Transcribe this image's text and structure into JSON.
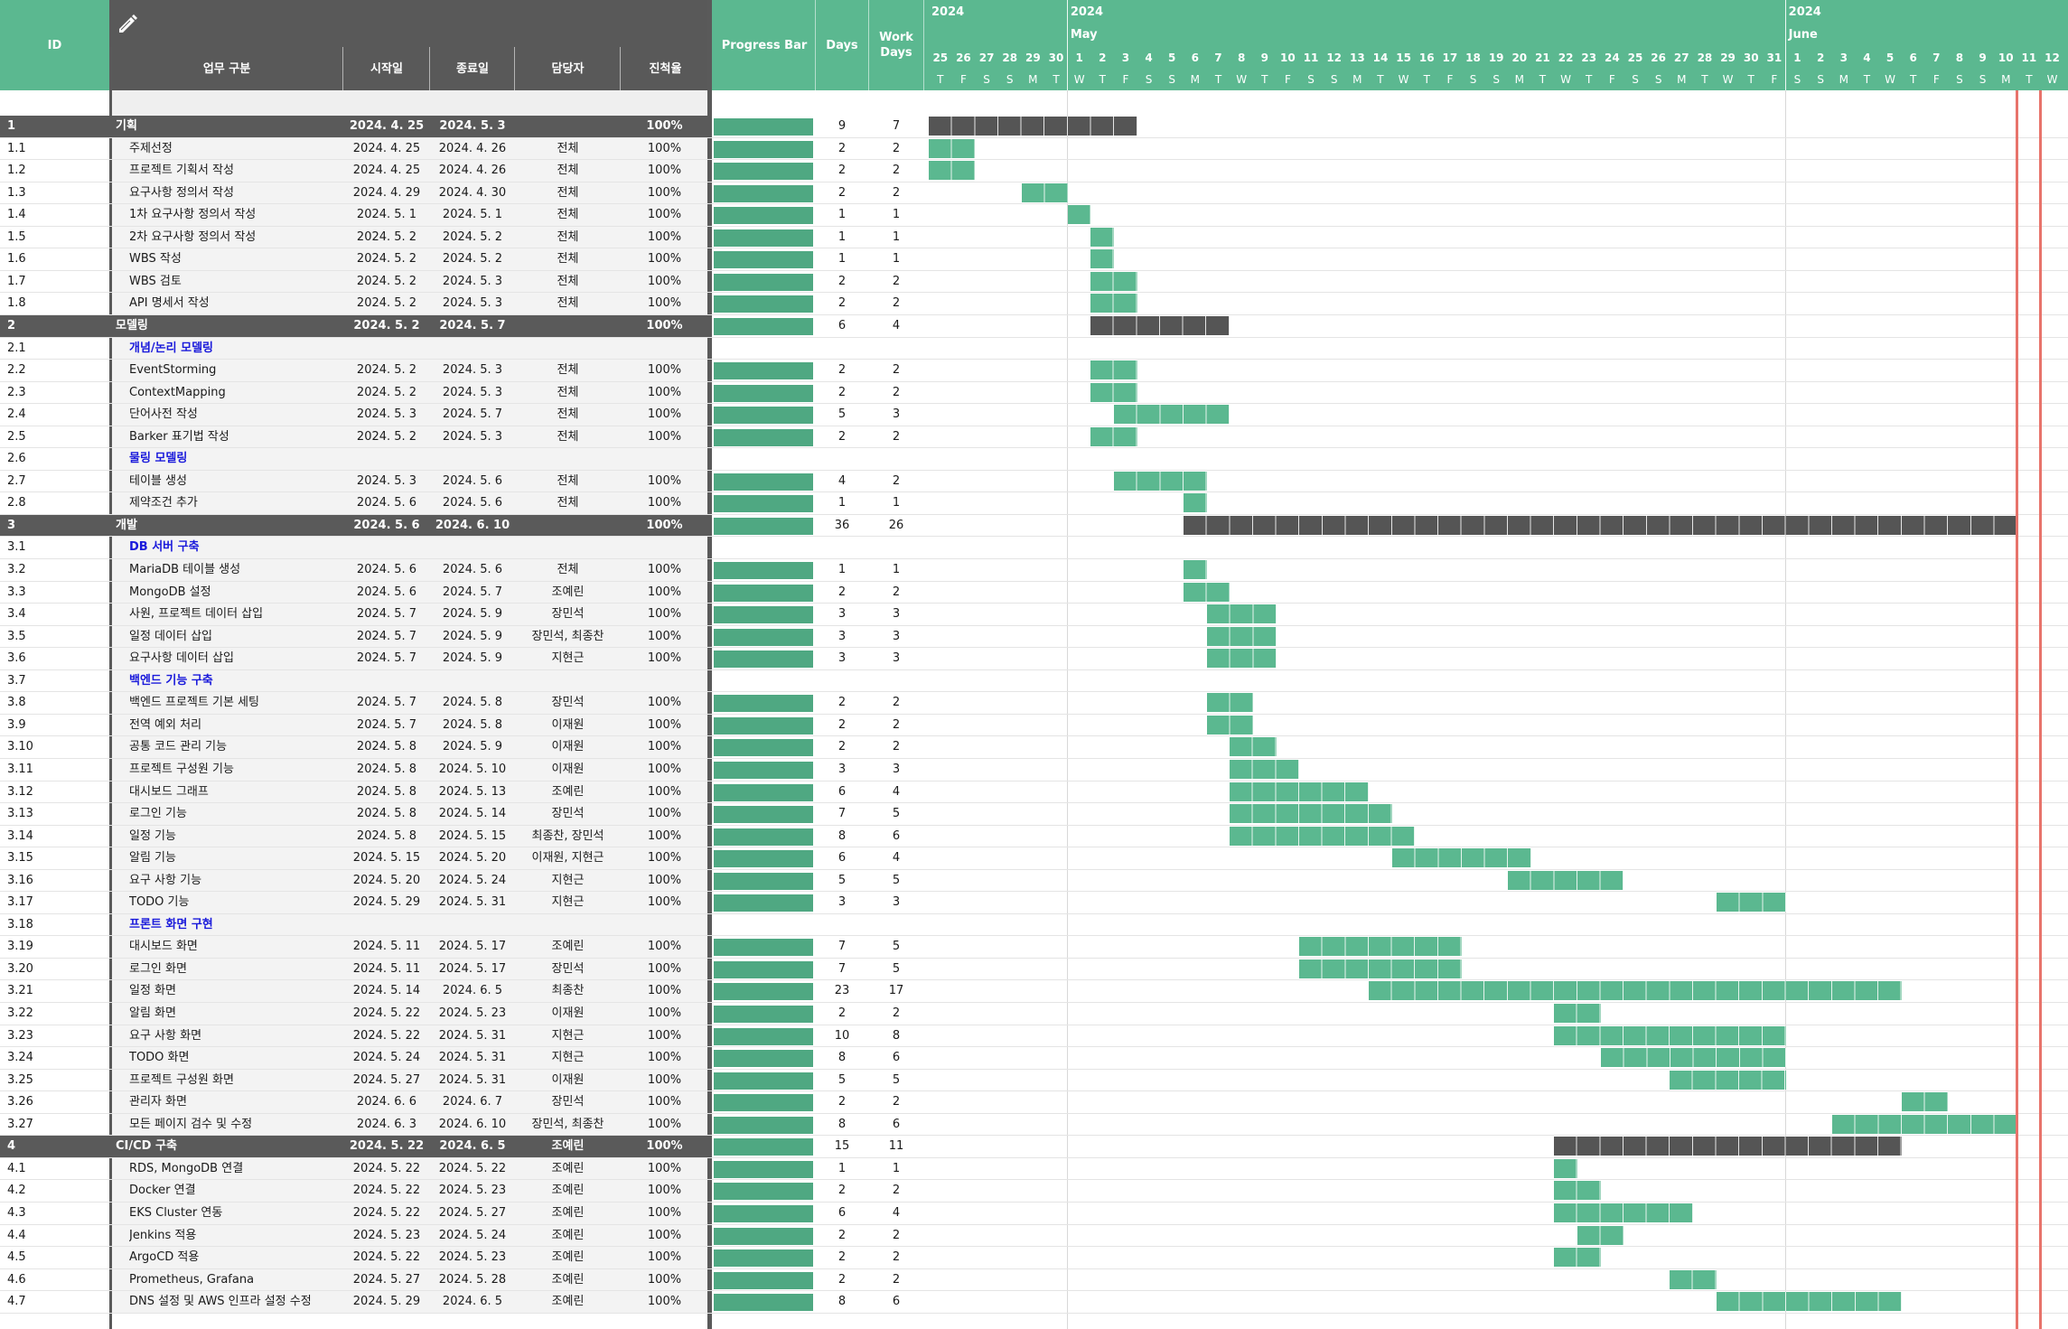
{
  "header": {
    "id_label": "ID",
    "task_label": "업무 구분",
    "start_label": "시작일",
    "end_label": "종료일",
    "owner_label": "담당자",
    "progress_label": "진척율",
    "progressbar_label": "Progress Bar",
    "days_label": "Days",
    "workdays_label": "Work Days",
    "edit_icon": "pencil-icon",
    "months": [
      {
        "year": "2024",
        "name": "",
        "start_index": 0
      },
      {
        "year": "2024",
        "name": "May",
        "start_index": 6
      },
      {
        "year": "2024",
        "name": "June",
        "start_index": 37
      }
    ],
    "dates": [
      {
        "d": "25",
        "w": "T"
      },
      {
        "d": "26",
        "w": "F"
      },
      {
        "d": "27",
        "w": "S"
      },
      {
        "d": "28",
        "w": "S"
      },
      {
        "d": "29",
        "w": "M"
      },
      {
        "d": "30",
        "w": "T"
      },
      {
        "d": "1",
        "w": "W"
      },
      {
        "d": "2",
        "w": "T"
      },
      {
        "d": "3",
        "w": "F"
      },
      {
        "d": "4",
        "w": "S"
      },
      {
        "d": "5",
        "w": "S"
      },
      {
        "d": "6",
        "w": "M"
      },
      {
        "d": "7",
        "w": "T"
      },
      {
        "d": "8",
        "w": "W"
      },
      {
        "d": "9",
        "w": "T"
      },
      {
        "d": "10",
        "w": "F"
      },
      {
        "d": "11",
        "w": "S"
      },
      {
        "d": "12",
        "w": "S"
      },
      {
        "d": "13",
        "w": "M"
      },
      {
        "d": "14",
        "w": "T"
      },
      {
        "d": "15",
        "w": "W"
      },
      {
        "d": "16",
        "w": "T"
      },
      {
        "d": "17",
        "w": "F"
      },
      {
        "d": "18",
        "w": "S"
      },
      {
        "d": "19",
        "w": "S"
      },
      {
        "d": "20",
        "w": "M"
      },
      {
        "d": "21",
        "w": "T"
      },
      {
        "d": "22",
        "w": "W"
      },
      {
        "d": "23",
        "w": "T"
      },
      {
        "d": "24",
        "w": "F"
      },
      {
        "d": "25",
        "w": "S"
      },
      {
        "d": "26",
        "w": "S"
      },
      {
        "d": "27",
        "w": "M"
      },
      {
        "d": "28",
        "w": "T"
      },
      {
        "d": "29",
        "w": "W"
      },
      {
        "d": "30",
        "w": "T"
      },
      {
        "d": "31",
        "w": "F"
      },
      {
        "d": "1",
        "w": "S"
      },
      {
        "d": "2",
        "w": "S"
      },
      {
        "d": "3",
        "w": "M"
      },
      {
        "d": "4",
        "w": "T"
      },
      {
        "d": "5",
        "w": "W"
      },
      {
        "d": "6",
        "w": "T"
      },
      {
        "d": "7",
        "w": "F"
      },
      {
        "d": "8",
        "w": "S"
      },
      {
        "d": "9",
        "w": "S"
      },
      {
        "d": "10",
        "w": "M"
      },
      {
        "d": "11",
        "w": "T"
      },
      {
        "d": "12",
        "w": "W"
      }
    ],
    "today_markers": [
      47,
      48
    ]
  },
  "colors": {
    "header_green": "#5bb890",
    "header_dark": "#595959",
    "bar_green": "#4fa882",
    "gantt_task": "#5bb890",
    "gantt_phase": "#555555",
    "subheading_blue": "#1a1adb",
    "today_red": "#e8736b"
  },
  "rows": [
    {
      "id": "1",
      "task": "기획",
      "start": "2024. 4. 25",
      "end": "2024. 5. 3",
      "owner": "",
      "pct": "100%",
      "days": "9",
      "work": "7",
      "type": "phase",
      "s": 0,
      "l": 9
    },
    {
      "id": "1.1",
      "task": "주제선정",
      "start": "2024. 4. 25",
      "end": "2024. 4. 26",
      "owner": "전체",
      "pct": "100%",
      "days": "2",
      "work": "2",
      "type": "task",
      "s": 0,
      "l": 2
    },
    {
      "id": "1.2",
      "task": "프로젝트 기획서 작성",
      "start": "2024. 4. 25",
      "end": "2024. 4. 26",
      "owner": "전체",
      "pct": "100%",
      "days": "2",
      "work": "2",
      "type": "task",
      "s": 0,
      "l": 2
    },
    {
      "id": "1.3",
      "task": "요구사항 정의서 작성",
      "start": "2024. 4. 29",
      "end": "2024. 4. 30",
      "owner": "전체",
      "pct": "100%",
      "days": "2",
      "work": "2",
      "type": "task",
      "s": 4,
      "l": 2
    },
    {
      "id": "1.4",
      "task": "1차 요구사항 정의서 작성",
      "start": "2024. 5. 1",
      "end": "2024. 5. 1",
      "owner": "전체",
      "pct": "100%",
      "days": "1",
      "work": "1",
      "type": "task",
      "s": 6,
      "l": 1
    },
    {
      "id": "1.5",
      "task": "2차 요구사항 정의서 작성",
      "start": "2024. 5. 2",
      "end": "2024. 5. 2",
      "owner": "전체",
      "pct": "100%",
      "days": "1",
      "work": "1",
      "type": "task",
      "s": 7,
      "l": 1
    },
    {
      "id": "1.6",
      "task": "WBS 작성",
      "start": "2024. 5. 2",
      "end": "2024. 5. 2",
      "owner": "전체",
      "pct": "100%",
      "days": "1",
      "work": "1",
      "type": "task",
      "s": 7,
      "l": 1
    },
    {
      "id": "1.7",
      "task": "WBS 검토",
      "start": "2024. 5. 2",
      "end": "2024. 5. 3",
      "owner": "전체",
      "pct": "100%",
      "days": "2",
      "work": "2",
      "type": "task",
      "s": 7,
      "l": 2
    },
    {
      "id": "1.8",
      "task": "API 명세서 작성",
      "start": "2024. 5. 2",
      "end": "2024. 5. 3",
      "owner": "전체",
      "pct": "100%",
      "days": "2",
      "work": "2",
      "type": "task",
      "s": 7,
      "l": 2
    },
    {
      "id": "2",
      "task": "모델링",
      "start": "2024. 5. 2",
      "end": "2024. 5. 7",
      "owner": "",
      "pct": "100%",
      "days": "6",
      "work": "4",
      "type": "phase",
      "s": 7,
      "l": 6
    },
    {
      "id": "2.1",
      "task": "개념/논리 모델링",
      "start": "",
      "end": "",
      "owner": "",
      "pct": "",
      "days": "",
      "work": "",
      "type": "sub",
      "s": 0,
      "l": 0
    },
    {
      "id": "2.2",
      "task": "EventStorming",
      "start": "2024. 5. 2",
      "end": "2024. 5. 3",
      "owner": "전체",
      "pct": "100%",
      "days": "2",
      "work": "2",
      "type": "task",
      "s": 7,
      "l": 2
    },
    {
      "id": "2.3",
      "task": "ContextMapping",
      "start": "2024. 5. 2",
      "end": "2024. 5. 3",
      "owner": "전체",
      "pct": "100%",
      "days": "2",
      "work": "2",
      "type": "task",
      "s": 7,
      "l": 2
    },
    {
      "id": "2.4",
      "task": "단어사전 작성",
      "start": "2024. 5. 3",
      "end": "2024. 5. 7",
      "owner": "전체",
      "pct": "100%",
      "days": "5",
      "work": "3",
      "type": "task",
      "s": 8,
      "l": 5
    },
    {
      "id": "2.5",
      "task": "Barker 표기법 작성",
      "start": "2024. 5. 2",
      "end": "2024. 5. 3",
      "owner": "전체",
      "pct": "100%",
      "days": "2",
      "work": "2",
      "type": "task",
      "s": 7,
      "l": 2
    },
    {
      "id": "2.6",
      "task": "물링 모델링",
      "start": "",
      "end": "",
      "owner": "",
      "pct": "",
      "days": "",
      "work": "",
      "type": "sub",
      "s": 0,
      "l": 0
    },
    {
      "id": "2.7",
      "task": "테이블 생성",
      "start": "2024. 5. 3",
      "end": "2024. 5. 6",
      "owner": "전체",
      "pct": "100%",
      "days": "4",
      "work": "2",
      "type": "task",
      "s": 8,
      "l": 4
    },
    {
      "id": "2.8",
      "task": "제약조건 추가",
      "start": "2024. 5. 6",
      "end": "2024. 5. 6",
      "owner": "전체",
      "pct": "100%",
      "days": "1",
      "work": "1",
      "type": "task",
      "s": 11,
      "l": 1
    },
    {
      "id": "3",
      "task": "개발",
      "start": "2024. 5. 6",
      "end": "2024. 6. 10",
      "owner": "",
      "pct": "100%",
      "days": "36",
      "work": "26",
      "type": "phase",
      "s": 11,
      "l": 36
    },
    {
      "id": "3.1",
      "task": "DB 서버 구축",
      "start": "",
      "end": "",
      "owner": "",
      "pct": "",
      "days": "",
      "work": "",
      "type": "sub",
      "s": 0,
      "l": 0
    },
    {
      "id": "3.2",
      "task": "MariaDB 테이블 생성",
      "start": "2024. 5. 6",
      "end": "2024. 5. 6",
      "owner": "전체",
      "pct": "100%",
      "days": "1",
      "work": "1",
      "type": "task",
      "s": 11,
      "l": 1
    },
    {
      "id": "3.3",
      "task": "MongoDB 설정",
      "start": "2024. 5. 6",
      "end": "2024. 5. 7",
      "owner": "조예린",
      "pct": "100%",
      "days": "2",
      "work": "2",
      "type": "task",
      "s": 11,
      "l": 2
    },
    {
      "id": "3.4",
      "task": "사원, 프로젝트 데이터 삽입",
      "start": "2024. 5. 7",
      "end": "2024. 5. 9",
      "owner": "장민석",
      "pct": "100%",
      "days": "3",
      "work": "3",
      "type": "task",
      "s": 12,
      "l": 3
    },
    {
      "id": "3.5",
      "task": "일정 데이터 삽입",
      "start": "2024. 5. 7",
      "end": "2024. 5. 9",
      "owner": "장민석, 최종찬",
      "pct": "100%",
      "days": "3",
      "work": "3",
      "type": "task",
      "s": 12,
      "l": 3
    },
    {
      "id": "3.6",
      "task": "요구사항 데이터 삽입",
      "start": "2024. 5. 7",
      "end": "2024. 5. 9",
      "owner": "지현근",
      "pct": "100%",
      "days": "3",
      "work": "3",
      "type": "task",
      "s": 12,
      "l": 3
    },
    {
      "id": "3.7",
      "task": "백엔드 기능 구축",
      "start": "",
      "end": "",
      "owner": "",
      "pct": "",
      "days": "",
      "work": "",
      "type": "sub",
      "s": 0,
      "l": 0
    },
    {
      "id": "3.8",
      "task": "백엔드 프로젝트 기본 세팅",
      "start": "2024. 5. 7",
      "end": "2024. 5. 8",
      "owner": "장민석",
      "pct": "100%",
      "days": "2",
      "work": "2",
      "type": "task",
      "s": 12,
      "l": 2
    },
    {
      "id": "3.9",
      "task": "전역 예외 처리",
      "start": "2024. 5. 7",
      "end": "2024. 5. 8",
      "owner": "이재원",
      "pct": "100%",
      "days": "2",
      "work": "2",
      "type": "task",
      "s": 12,
      "l": 2
    },
    {
      "id": "3.10",
      "task": "공통 코드 관리 기능",
      "start": "2024. 5. 8",
      "end": "2024. 5. 9",
      "owner": "이재원",
      "pct": "100%",
      "days": "2",
      "work": "2",
      "type": "task",
      "s": 13,
      "l": 2
    },
    {
      "id": "3.11",
      "task": "프로젝트 구성원 기능",
      "start": "2024. 5. 8",
      "end": "2024. 5. 10",
      "owner": "이재원",
      "pct": "100%",
      "days": "3",
      "work": "3",
      "type": "task",
      "s": 13,
      "l": 3
    },
    {
      "id": "3.12",
      "task": "대시보드 그래프",
      "start": "2024. 5. 8",
      "end": "2024. 5. 13",
      "owner": "조예린",
      "pct": "100%",
      "days": "6",
      "work": "4",
      "type": "task",
      "s": 13,
      "l": 6
    },
    {
      "id": "3.13",
      "task": "로그인 기능",
      "start": "2024. 5. 8",
      "end": "2024. 5. 14",
      "owner": "장민석",
      "pct": "100%",
      "days": "7",
      "work": "5",
      "type": "task",
      "s": 13,
      "l": 7
    },
    {
      "id": "3.14",
      "task": "일정 기능",
      "start": "2024. 5. 8",
      "end": "2024. 5. 15",
      "owner": "최종찬, 장민석",
      "pct": "100%",
      "days": "8",
      "work": "6",
      "type": "task",
      "s": 13,
      "l": 8
    },
    {
      "id": "3.15",
      "task": "알림 기능",
      "start": "2024. 5. 15",
      "end": "2024. 5. 20",
      "owner": "이재원, 지현근",
      "pct": "100%",
      "days": "6",
      "work": "4",
      "type": "task",
      "s": 20,
      "l": 6
    },
    {
      "id": "3.16",
      "task": "요구 사항 기능",
      "start": "2024. 5. 20",
      "end": "2024. 5. 24",
      "owner": "지현근",
      "pct": "100%",
      "days": "5",
      "work": "5",
      "type": "task",
      "s": 25,
      "l": 5
    },
    {
      "id": "3.17",
      "task": "TODO 기능",
      "start": "2024. 5. 29",
      "end": "2024. 5. 31",
      "owner": "지현근",
      "pct": "100%",
      "days": "3",
      "work": "3",
      "type": "task",
      "s": 34,
      "l": 3
    },
    {
      "id": "3.18",
      "task": "프론트 화면 구현",
      "start": "",
      "end": "",
      "owner": "",
      "pct": "",
      "days": "",
      "work": "",
      "type": "sub",
      "s": 0,
      "l": 0
    },
    {
      "id": "3.19",
      "task": "대시보드 화면",
      "start": "2024. 5. 11",
      "end": "2024. 5. 17",
      "owner": "조예린",
      "pct": "100%",
      "days": "7",
      "work": "5",
      "type": "task",
      "s": 16,
      "l": 7
    },
    {
      "id": "3.20",
      "task": "로그인 화면",
      "start": "2024. 5. 11",
      "end": "2024. 5. 17",
      "owner": "장민석",
      "pct": "100%",
      "days": "7",
      "work": "5",
      "type": "task",
      "s": 16,
      "l": 7
    },
    {
      "id": "3.21",
      "task": "일정 화면",
      "start": "2024. 5. 14",
      "end": "2024. 6. 5",
      "owner": "최종찬",
      "pct": "100%",
      "days": "23",
      "work": "17",
      "type": "task",
      "s": 19,
      "l": 23
    },
    {
      "id": "3.22",
      "task": "알림 화면",
      "start": "2024. 5. 22",
      "end": "2024. 5. 23",
      "owner": "이재원",
      "pct": "100%",
      "days": "2",
      "work": "2",
      "type": "task",
      "s": 27,
      "l": 2
    },
    {
      "id": "3.23",
      "task": "요구 사항 화면",
      "start": "2024. 5. 22",
      "end": "2024. 5. 31",
      "owner": "지현근",
      "pct": "100%",
      "days": "10",
      "work": "8",
      "type": "task",
      "s": 27,
      "l": 10
    },
    {
      "id": "3.24",
      "task": "TODO 화면",
      "start": "2024. 5. 24",
      "end": "2024. 5. 31",
      "owner": "지현근",
      "pct": "100%",
      "days": "8",
      "work": "6",
      "type": "task",
      "s": 29,
      "l": 8
    },
    {
      "id": "3.25",
      "task": "프로젝트 구성원 화면",
      "start": "2024. 5. 27",
      "end": "2024. 5. 31",
      "owner": "이재원",
      "pct": "100%",
      "days": "5",
      "work": "5",
      "type": "task",
      "s": 32,
      "l": 5
    },
    {
      "id": "3.26",
      "task": "관리자 화면",
      "start": "2024. 6. 6",
      "end": "2024. 6. 7",
      "owner": "장민석",
      "pct": "100%",
      "days": "2",
      "work": "2",
      "type": "task",
      "s": 42,
      "l": 2
    },
    {
      "id": "3.27",
      "task": "모든 페이지 검수 및 수정",
      "start": "2024. 6. 3",
      "end": "2024. 6. 10",
      "owner": "장민석, 최종찬",
      "pct": "100%",
      "days": "8",
      "work": "6",
      "type": "task",
      "s": 39,
      "l": 8
    },
    {
      "id": "4",
      "task": "CI/CD 구축",
      "start": "2024. 5. 22",
      "end": "2024. 6. 5",
      "owner": "조예린",
      "pct": "100%",
      "days": "15",
      "work": "11",
      "type": "phase",
      "s": 27,
      "l": 15
    },
    {
      "id": "4.1",
      "task": "RDS, MongoDB 연결",
      "start": "2024. 5. 22",
      "end": "2024. 5. 22",
      "owner": "조예린",
      "pct": "100%",
      "days": "1",
      "work": "1",
      "type": "task",
      "s": 27,
      "l": 1
    },
    {
      "id": "4.2",
      "task": "Docker 연결",
      "start": "2024. 5. 22",
      "end": "2024. 5. 23",
      "owner": "조예린",
      "pct": "100%",
      "days": "2",
      "work": "2",
      "type": "task",
      "s": 27,
      "l": 2
    },
    {
      "id": "4.3",
      "task": "EKS Cluster 연동",
      "start": "2024. 5. 22",
      "end": "2024. 5. 27",
      "owner": "조예린",
      "pct": "100%",
      "days": "6",
      "work": "4",
      "type": "task",
      "s": 27,
      "l": 6
    },
    {
      "id": "4.4",
      "task": "Jenkins 적용",
      "start": "2024. 5. 23",
      "end": "2024. 5. 24",
      "owner": "조예린",
      "pct": "100%",
      "days": "2",
      "work": "2",
      "type": "task",
      "s": 28,
      "l": 2
    },
    {
      "id": "4.5",
      "task": "ArgoCD 적용",
      "start": "2024. 5. 22",
      "end": "2024. 5. 23",
      "owner": "조예린",
      "pct": "100%",
      "days": "2",
      "work": "2",
      "type": "task",
      "s": 27,
      "l": 2
    },
    {
      "id": "4.6",
      "task": "Prometheus, Grafana",
      "start": "2024. 5. 27",
      "end": "2024. 5. 28",
      "owner": "조예린",
      "pct": "100%",
      "days": "2",
      "work": "2",
      "type": "task",
      "s": 32,
      "l": 2
    },
    {
      "id": "4.7",
      "task": "DNS 설정 및 AWS 인프라 설정 수정",
      "start": "2024. 5. 29",
      "end": "2024. 6. 5",
      "owner": "조예린",
      "pct": "100%",
      "days": "8",
      "work": "6",
      "type": "task",
      "s": 34,
      "l": 8
    }
  ]
}
